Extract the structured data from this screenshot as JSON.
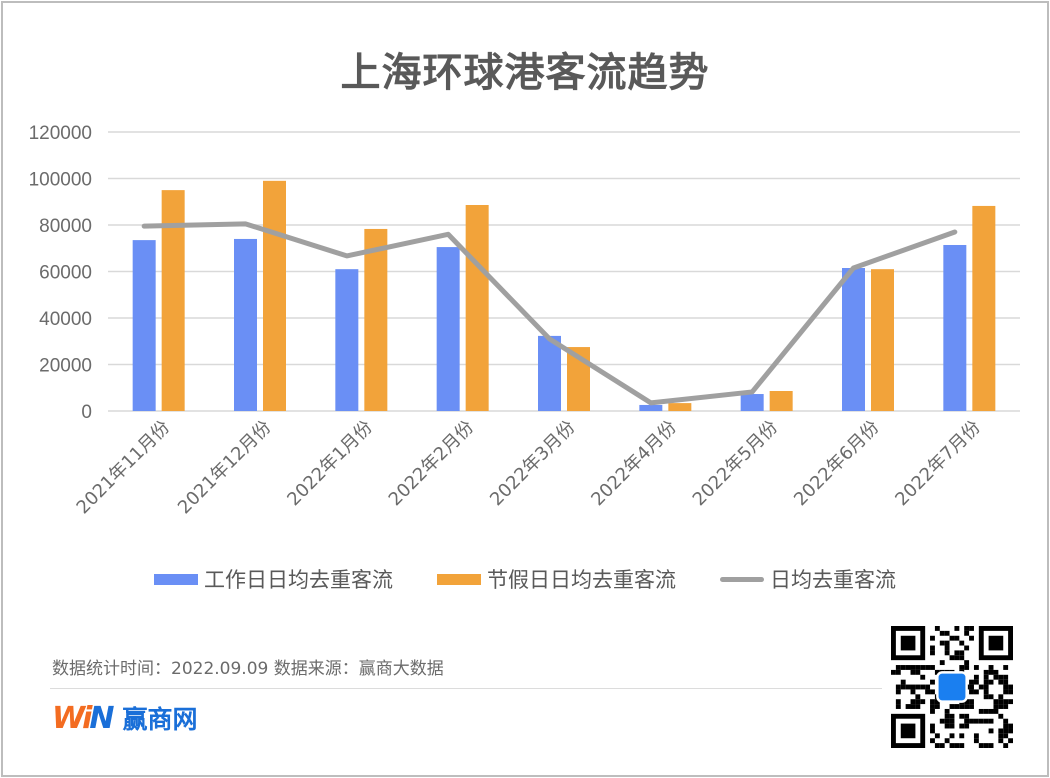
{
  "title": "上海环球港客流趋势",
  "legend": {
    "workday": "工作日日均去重客流",
    "holiday": "节假日日均去重客流",
    "daily": "日均去重客流"
  },
  "colors": {
    "workday": "#6a8ff5",
    "holiday": "#f2a33a",
    "daily": "#a0a0a0",
    "grid": "#d9d9d9",
    "axis_text": "#6b6b6b"
  },
  "footer": {
    "note": "数据统计时间：2022.09.09  数据来源：赢商大数据",
    "logo_w": "Wi",
    "logo_n": "N",
    "logo_text": "赢商网",
    "qr_label": "qr-code"
  },
  "chart_data": {
    "type": "bar",
    "title": "上海环球港客流趋势",
    "xlabel": "",
    "ylabel": "",
    "ylim": [
      0,
      120000
    ],
    "yticks": [
      0,
      20000,
      40000,
      60000,
      80000,
      100000,
      120000
    ],
    "grid": true,
    "legend_position": "bottom",
    "categories": [
      "2021年11月份",
      "2021年12月份",
      "2022年1月份",
      "2022年2月份",
      "2022年3月份",
      "2022年4月份",
      "2022年5月份",
      "2022年6月份",
      "2022年7月份"
    ],
    "series": [
      {
        "name": "工作日日均去重客流",
        "type": "bar",
        "values": [
          73500,
          74000,
          61000,
          70500,
          32300,
          2600,
          7300,
          61500,
          71400
        ]
      },
      {
        "name": "节假日日均去重客流",
        "type": "bar",
        "values": [
          95000,
          99000,
          78300,
          88600,
          27500,
          3400,
          8600,
          61000,
          88200
        ]
      },
      {
        "name": "日均去重客流",
        "type": "line",
        "values": [
          79500,
          80500,
          66700,
          76000,
          31000,
          3500,
          8200,
          61500,
          77000
        ]
      }
    ]
  }
}
